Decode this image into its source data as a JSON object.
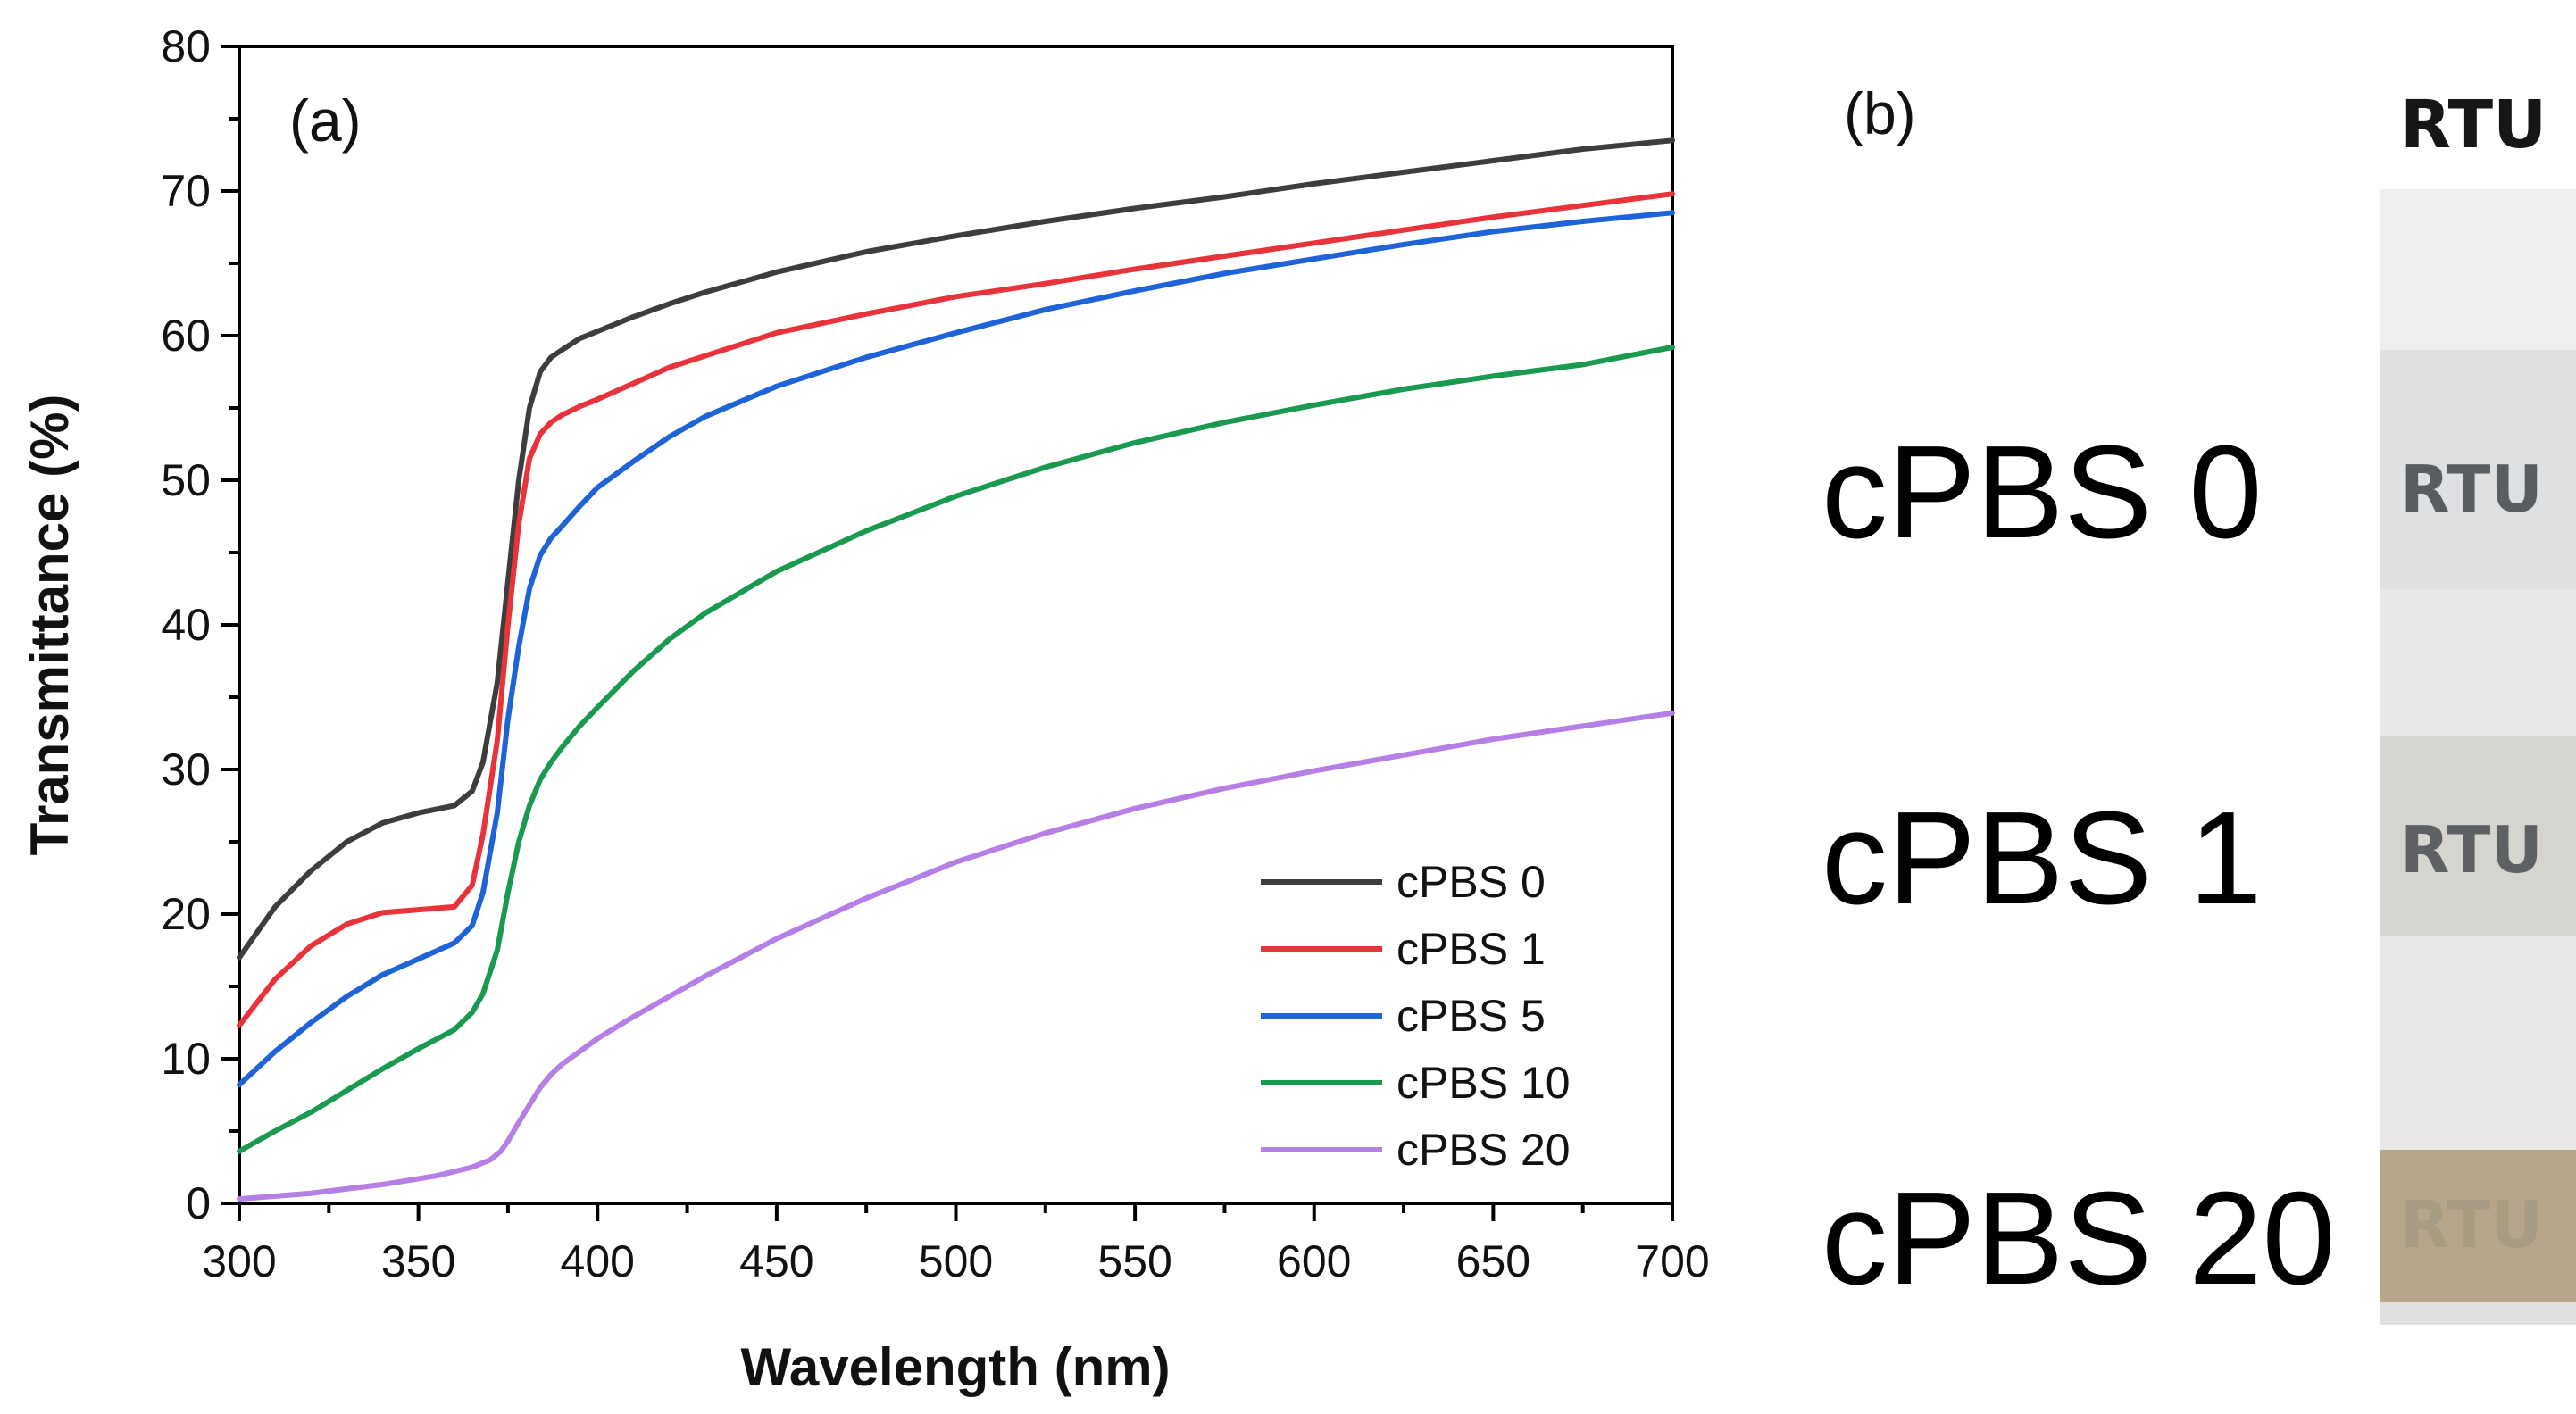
{
  "chart_data": {
    "type": "line",
    "panel_label": "(a)",
    "xlabel": "Wavelength (nm)",
    "ylabel": "Transmittance (%)",
    "xlim": [
      300,
      700
    ],
    "ylim": [
      0,
      80
    ],
    "xticks": [
      300,
      350,
      400,
      450,
      500,
      550,
      600,
      650,
      700
    ],
    "yticks": [
      0,
      10,
      20,
      30,
      40,
      50,
      60,
      70,
      80
    ],
    "legend_position": "bottom-right",
    "grid": false,
    "series": [
      {
        "name": "cPBS 0",
        "color": "#3d3d3d",
        "x": [
          300,
          310,
          320,
          330,
          340,
          350,
          360,
          365,
          368,
          372,
          375,
          378,
          381,
          384,
          387,
          390,
          395,
          400,
          410,
          420,
          430,
          450,
          475,
          500,
          525,
          550,
          575,
          600,
          625,
          650,
          675,
          700
        ],
        "y": [
          17,
          20.5,
          23,
          25,
          26.3,
          27,
          27.5,
          28.5,
          30.5,
          36,
          43,
          50,
          55,
          57.5,
          58.5,
          59,
          59.8,
          60.3,
          61.3,
          62.2,
          63,
          64.4,
          65.8,
          66.9,
          67.9,
          68.8,
          69.6,
          70.5,
          71.3,
          72.1,
          72.9,
          73.5
        ]
      },
      {
        "name": "cPBS 1",
        "color": "#e8333a",
        "x": [
          300,
          310,
          320,
          330,
          340,
          350,
          360,
          365,
          368,
          372,
          375,
          378,
          381,
          384,
          387,
          390,
          395,
          400,
          410,
          420,
          430,
          450,
          475,
          500,
          525,
          550,
          575,
          600,
          625,
          650,
          675,
          700
        ],
        "y": [
          12.3,
          15.5,
          17.8,
          19.3,
          20.1,
          20.3,
          20.5,
          22,
          25.5,
          32,
          40,
          47,
          51.5,
          53.2,
          54,
          54.5,
          55.1,
          55.6,
          56.7,
          57.8,
          58.6,
          60.2,
          61.5,
          62.7,
          63.6,
          64.6,
          65.5,
          66.4,
          67.3,
          68.2,
          69,
          69.8
        ]
      },
      {
        "name": "cPBS 5",
        "color": "#1f63d8",
        "x": [
          300,
          310,
          320,
          330,
          340,
          350,
          360,
          365,
          368,
          372,
          375,
          378,
          381,
          384,
          387,
          390,
          395,
          400,
          410,
          420,
          430,
          450,
          475,
          500,
          525,
          550,
          575,
          600,
          625,
          650,
          675,
          700
        ],
        "y": [
          8.2,
          10.5,
          12.5,
          14.3,
          15.8,
          16.9,
          18,
          19.2,
          21.5,
          27,
          33.5,
          38.5,
          42.5,
          44.8,
          46,
          46.8,
          48.2,
          49.5,
          51.3,
          53,
          54.4,
          56.5,
          58.5,
          60.2,
          61.8,
          63.1,
          64.3,
          65.3,
          66.3,
          67.2,
          67.9,
          68.5
        ]
      },
      {
        "name": "cPBS 10",
        "color": "#1a9a50",
        "x": [
          300,
          310,
          320,
          330,
          340,
          350,
          360,
          365,
          368,
          372,
          375,
          378,
          381,
          384,
          387,
          390,
          395,
          400,
          410,
          420,
          430,
          450,
          475,
          500,
          525,
          550,
          575,
          600,
          625,
          650,
          675,
          700
        ],
        "y": [
          3.6,
          5,
          6.3,
          7.8,
          9.3,
          10.7,
          12,
          13.2,
          14.5,
          17.5,
          21.5,
          25,
          27.5,
          29.3,
          30.5,
          31.5,
          33,
          34.3,
          36.8,
          39,
          40.8,
          43.7,
          46.5,
          48.9,
          50.9,
          52.6,
          54,
          55.2,
          56.3,
          57.2,
          58,
          59.2
        ]
      },
      {
        "name": "cPBS 20",
        "color": "#b57fe6",
        "x": [
          300,
          320,
          340,
          355,
          365,
          370,
          373,
          375,
          378,
          381,
          384,
          387,
          390,
          395,
          400,
          410,
          420,
          430,
          450,
          475,
          500,
          525,
          550,
          575,
          600,
          625,
          650,
          675,
          700
        ],
        "y": [
          0.3,
          0.7,
          1.3,
          1.9,
          2.5,
          3,
          3.6,
          4.3,
          5.6,
          6.8,
          8,
          8.9,
          9.6,
          10.5,
          11.4,
          12.9,
          14.3,
          15.7,
          18.3,
          21.1,
          23.6,
          25.6,
          27.3,
          28.7,
          29.9,
          31,
          32.1,
          33,
          33.9
        ]
      }
    ]
  },
  "photo_panel": {
    "panel_label": "(b)",
    "header_text": "RTU",
    "samples": [
      {
        "label": "cPBS 0",
        "stamp": "RTU"
      },
      {
        "label": "cPBS 1",
        "stamp": "RTU"
      },
      {
        "label": "cPBS 20",
        "stamp": "RTU"
      }
    ]
  }
}
